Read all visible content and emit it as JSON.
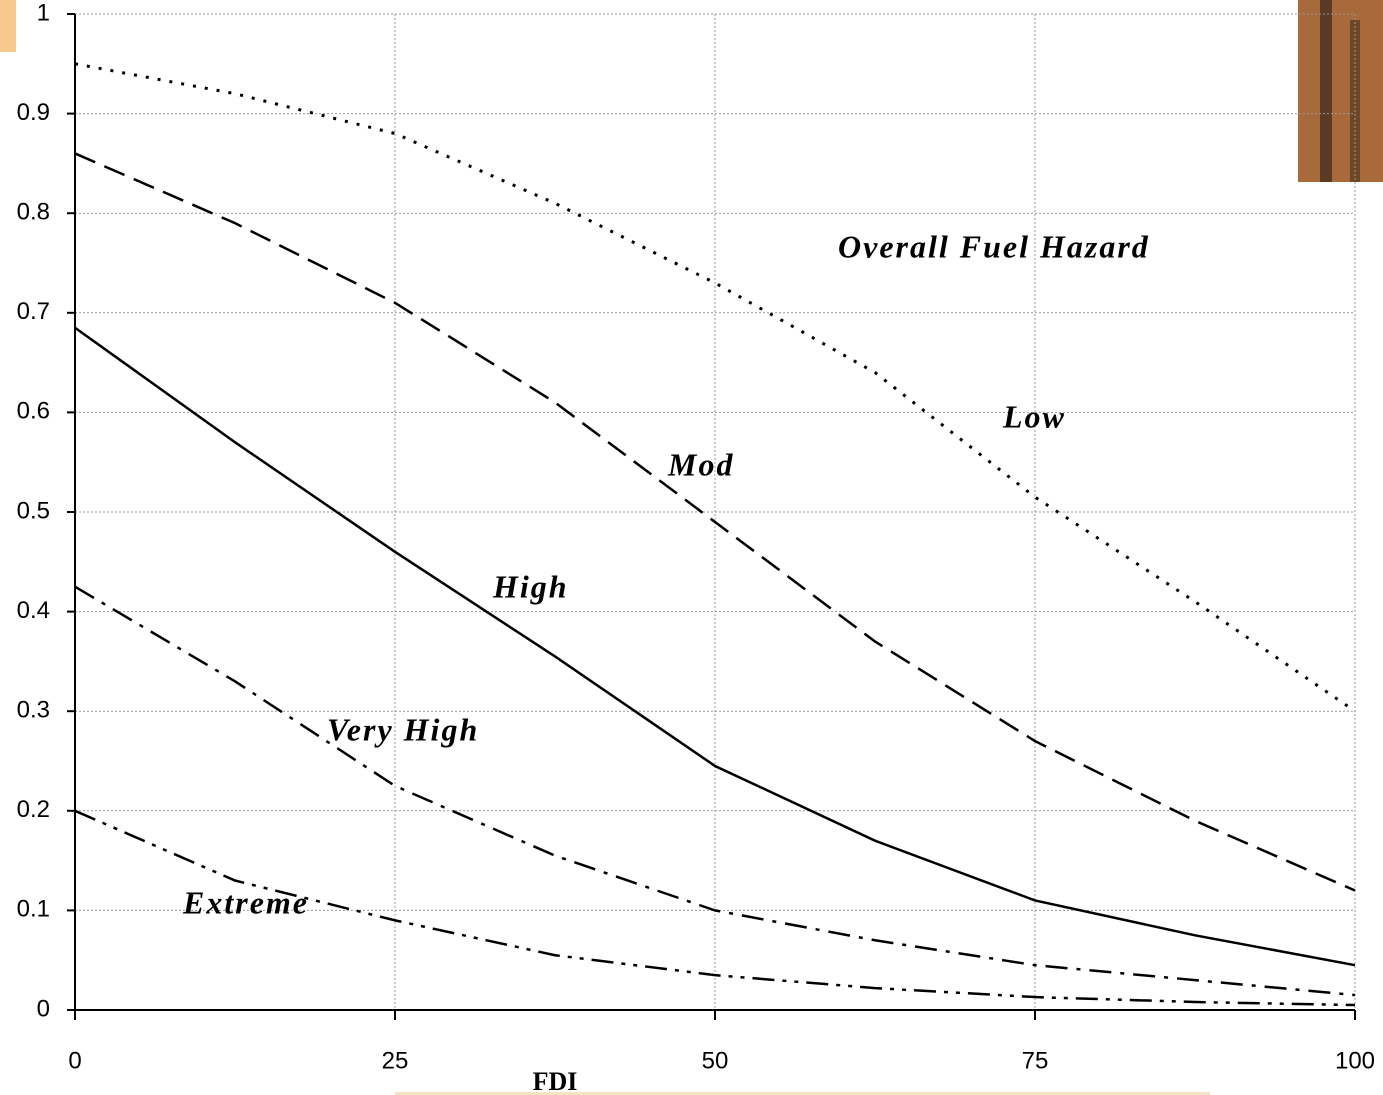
{
  "chart_data": {
    "type": "line",
    "annotation": "Overall Fuel Hazard",
    "x_label": "FDI",
    "x": [
      0,
      12.5,
      25,
      37.5,
      50,
      62.5,
      75,
      87.5,
      100
    ],
    "series": [
      {
        "name": "Low",
        "color": "#000000",
        "style": "dotted",
        "values": [
          0.95,
          0.92,
          0.88,
          0.81,
          0.73,
          0.64,
          0.515,
          0.41,
          0.3
        ]
      },
      {
        "name": "Mod",
        "color": "#000000",
        "style": "dashed",
        "values": [
          0.86,
          0.79,
          0.71,
          0.61,
          0.49,
          0.37,
          0.27,
          0.19,
          0.12
        ]
      },
      {
        "name": "High",
        "color": "#000000",
        "style": "solid",
        "values": [
          0.685,
          0.57,
          0.46,
          0.355,
          0.245,
          0.17,
          0.11,
          0.075,
          0.045
        ]
      },
      {
        "name": "Very High",
        "color": "#000000",
        "style": "dash-dot",
        "values": [
          0.425,
          0.33,
          0.225,
          0.155,
          0.1,
          0.07,
          0.045,
          0.03,
          0.015
        ]
      },
      {
        "name": "Extreme",
        "color": "#000000",
        "style": "dash-dot-dot",
        "values": [
          0.2,
          0.13,
          0.09,
          0.055,
          0.035,
          0.022,
          0.013,
          0.008,
          0.005
        ]
      }
    ],
    "xlim": [
      0,
      100
    ],
    "xticks": [
      0,
      25,
      50,
      75,
      100
    ],
    "ylim": [
      0,
      1
    ],
    "yticks": [
      0,
      0.1,
      0.2,
      0.3,
      0.4,
      0.5,
      0.6,
      0.7,
      0.8,
      0.9,
      1
    ],
    "grid": true
  }
}
